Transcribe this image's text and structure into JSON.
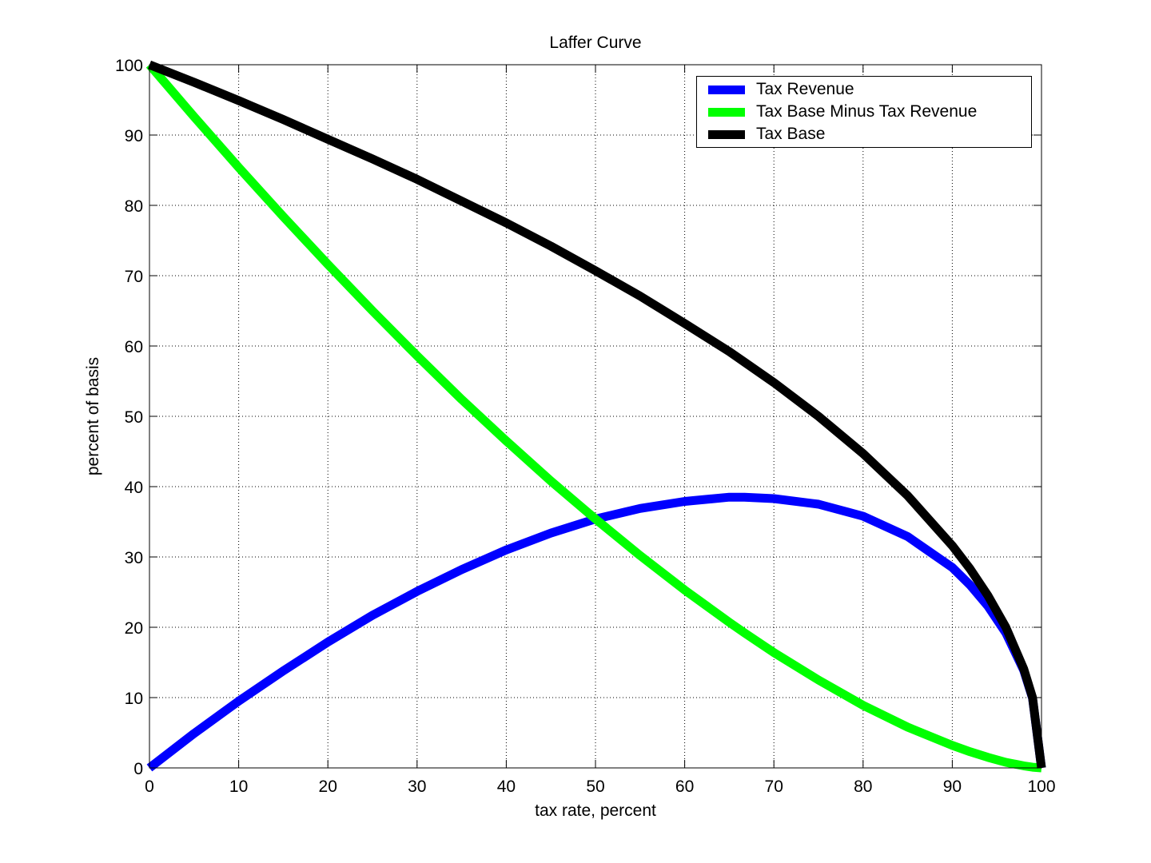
{
  "chart_data": {
    "type": "line",
    "title": "Laffer Curve",
    "xlabel": "tax rate, percent",
    "ylabel": "percent of basis",
    "xlim": [
      0,
      100
    ],
    "ylim": [
      0,
      100
    ],
    "xticks": [
      0,
      10,
      20,
      30,
      40,
      50,
      60,
      70,
      80,
      90,
      100
    ],
    "yticks": [
      0,
      10,
      20,
      30,
      40,
      50,
      60,
      70,
      80,
      90,
      100
    ],
    "grid": true,
    "legend_position": "upper right",
    "x": [
      0,
      5,
      10,
      15,
      20,
      25,
      30,
      35,
      40,
      45,
      50,
      55,
      60,
      65,
      66.7,
      70,
      75,
      80,
      85,
      90,
      92,
      94,
      96,
      98,
      99,
      100
    ],
    "series": [
      {
        "name": "Tax Revenue",
        "color": "#0000ff",
        "values": [
          0,
          4.9,
          9.5,
          13.8,
          17.9,
          21.7,
          25.1,
          28.2,
          31.0,
          33.4,
          35.4,
          36.9,
          37.9,
          38.5,
          38.5,
          38.3,
          37.5,
          35.8,
          32.9,
          28.5,
          26.0,
          23.0,
          19.2,
          13.9,
          9.9,
          0
        ]
      },
      {
        "name": "Tax Base Minus Tax Revenue",
        "color": "#00ff00",
        "values": [
          100,
          92.6,
          85.4,
          78.4,
          71.6,
          65.0,
          58.6,
          52.4,
          46.5,
          40.8,
          35.4,
          30.2,
          25.3,
          20.7,
          19.2,
          16.4,
          12.5,
          8.9,
          5.8,
          3.2,
          2.3,
          1.5,
          0.8,
          0.3,
          0.1,
          0
        ]
      },
      {
        "name": "Tax Base",
        "color": "#000000",
        "values": [
          100,
          97.5,
          94.9,
          92.2,
          89.4,
          86.6,
          83.7,
          80.6,
          77.5,
          74.2,
          70.7,
          67.1,
          63.2,
          59.2,
          57.7,
          54.8,
          50.0,
          44.7,
          38.7,
          31.6,
          28.3,
          24.5,
          20.0,
          14.1,
          10.0,
          0
        ]
      }
    ]
  }
}
